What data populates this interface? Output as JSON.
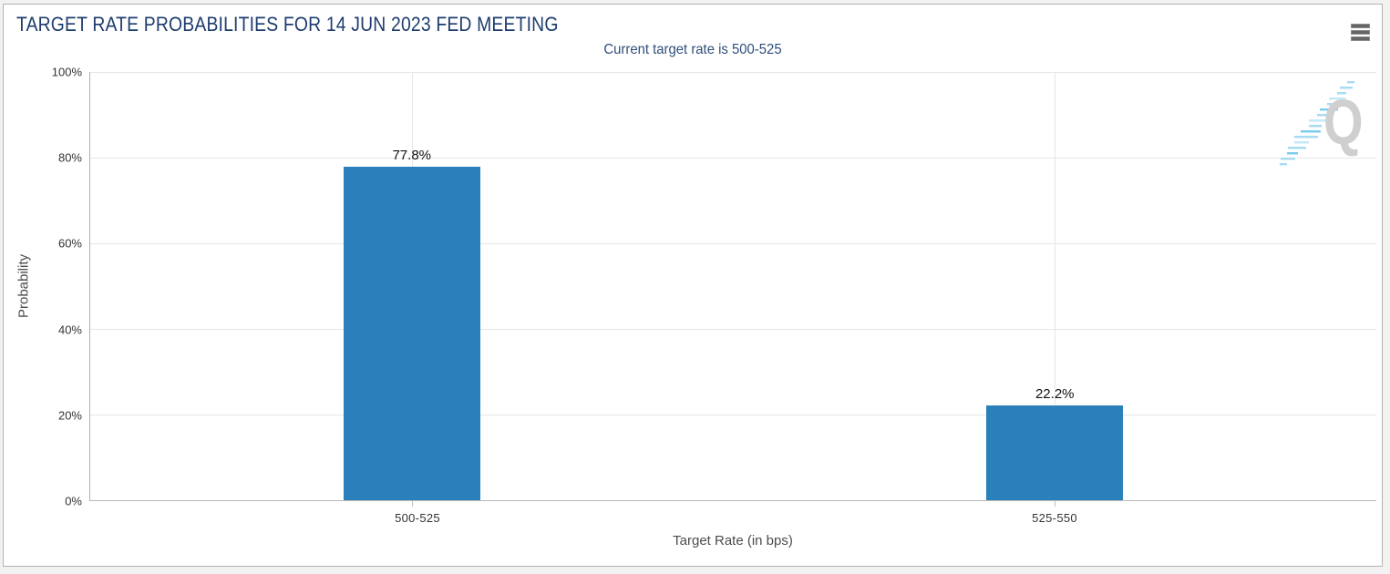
{
  "header": {
    "title": "TARGET RATE PROBABILITIES FOR 14 JUN 2023 FED MEETING",
    "subtitle": "Current target rate is 500-525"
  },
  "controls": {
    "context_menu_icon": "hamburger-menu-icon"
  },
  "chart_data": {
    "type": "bar",
    "title": "TARGET RATE PROBABILITIES FOR 14 JUN 2023 FED MEETING",
    "subtitle": "Current target rate is 500-525",
    "categories": [
      "500-525",
      "525-550"
    ],
    "values": [
      77.8,
      22.2
    ],
    "value_labels": [
      "77.8%",
      "22.2%"
    ],
    "xlabel": "Target Rate (in bps)",
    "ylabel": "Probability",
    "ylim": [
      0,
      100
    ],
    "y_ticks": [
      "0%",
      "20%",
      "40%",
      "60%",
      "80%",
      "100%"
    ],
    "grid": true,
    "legend": "none",
    "bar_color_hex": "#2a80ba"
  },
  "watermark": {
    "letter": "Q"
  },
  "theme": {
    "bar_color": "#2a80ba",
    "title_color": "#1d3c6e",
    "subtitle_color": "#2e4e7c",
    "grid_color": "#e6e6e6",
    "border_color": "#b3b3b3"
  }
}
